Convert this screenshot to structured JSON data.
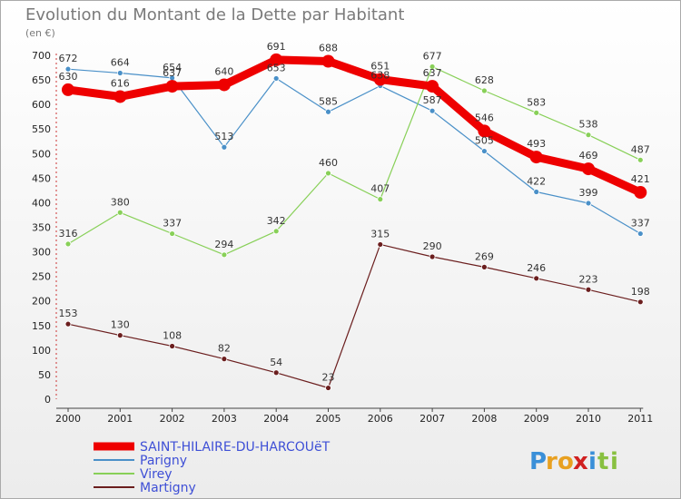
{
  "chart_data": {
    "type": "line",
    "title": "Evolution du Montant de la Dette par Habitant",
    "subtitle": "(en €)",
    "x": [
      "2000",
      "2001",
      "2002",
      "2003",
      "2004",
      "2005",
      "2006",
      "2007",
      "2008",
      "2009",
      "2010",
      "2011"
    ],
    "yticks": [
      0,
      50,
      100,
      150,
      200,
      250,
      300,
      350,
      400,
      450,
      500,
      550,
      600,
      650,
      700
    ],
    "ylim": [
      0,
      700
    ],
    "grid": false,
    "legend_position": "bottom-left",
    "series": [
      {
        "name": "SAINT-HILAIRE-DU-HARCOUëT",
        "color": "#ee0000",
        "width": 9,
        "dot": 7,
        "values": [
          630,
          616,
          637,
          640,
          691,
          688,
          651,
          637,
          546,
          493,
          469,
          421
        ]
      },
      {
        "name": "Parigny",
        "color": "#4a90c8",
        "width": 1.2,
        "dot": 3,
        "values": [
          672,
          664,
          654,
          513,
          653,
          585,
          638,
          587,
          505,
          422,
          399,
          337
        ]
      },
      {
        "name": "Virey",
        "color": "#88d058",
        "width": 1.2,
        "dot": 3,
        "values": [
          316,
          380,
          337,
          294,
          342,
          460,
          407,
          677,
          628,
          583,
          538,
          487
        ]
      },
      {
        "name": "Martigny",
        "color": "#6b1e1e",
        "width": 1.2,
        "dot": 3,
        "values": [
          153,
          130,
          108,
          82,
          54,
          23,
          315,
          290,
          269,
          246,
          223,
          198
        ]
      }
    ]
  },
  "branding": {
    "logo_text": "Proxiti"
  }
}
